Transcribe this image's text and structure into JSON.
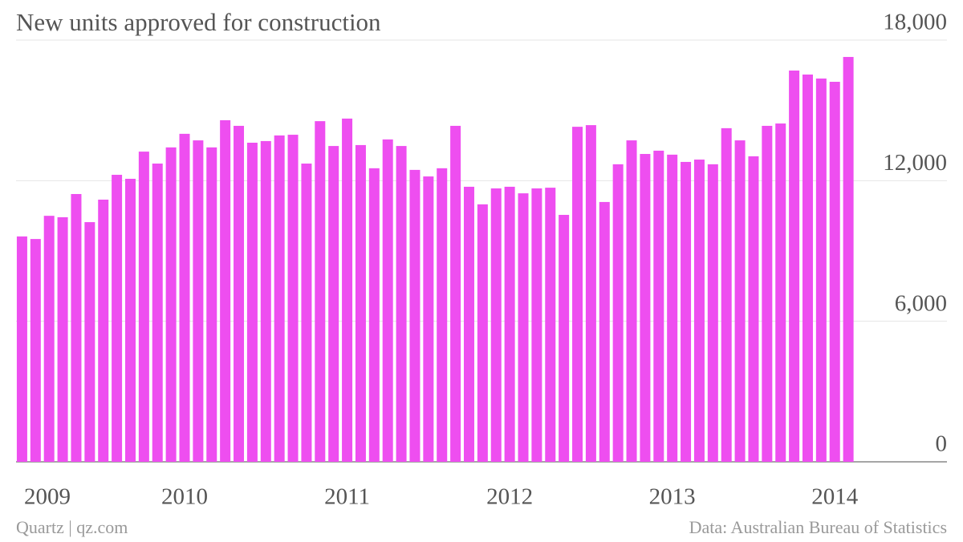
{
  "chart_data": {
    "type": "bar",
    "title": "New units approved for construction",
    "source": "Data: Australian Bureau of Statistics",
    "credit": "Quartz | qz.com",
    "color": "#ee4ef0",
    "categories": [
      "2009",
      null,
      null,
      null,
      null,
      null,
      null,
      null,
      null,
      null,
      null,
      null,
      "2010",
      null,
      null,
      null,
      null,
      null,
      null,
      null,
      null,
      null,
      null,
      null,
      "2011",
      null,
      null,
      null,
      null,
      null,
      null,
      null,
      null,
      null,
      null,
      null,
      "2012",
      null,
      null,
      null,
      null,
      null,
      null,
      null,
      null,
      null,
      null,
      null,
      "2013",
      null,
      null,
      null,
      null,
      null,
      null,
      null,
      null,
      null,
      null,
      null,
      "2014",
      null
    ],
    "values": [
      9620,
      9510,
      10500,
      10440,
      11430,
      10230,
      11190,
      12250,
      12080,
      13240,
      12730,
      13420,
      14000,
      13720,
      13420,
      14580,
      14340,
      13620,
      13690,
      13930,
      13960,
      12730,
      14540,
      13480,
      14650,
      13520,
      12530,
      13760,
      13480,
      12460,
      12180,
      12530,
      14340,
      11740,
      10990,
      11670,
      11740,
      11460,
      11670,
      11700,
      10540,
      14300,
      14370,
      11090,
      12700,
      13720,
      13140,
      13280,
      13110,
      12800,
      12900,
      12700,
      14240,
      13720,
      13040,
      14340,
      14440,
      16700,
      16530,
      16360,
      16220,
      17280
    ],
    "ylim": [
      0,
      18000
    ],
    "yticks": [
      0,
      {
        "value": 6000,
        "label": "6,000"
      },
      {
        "value": 12000,
        "label": "12,000"
      },
      {
        "value": 18000,
        "label": "18,000"
      }
    ],
    "grid": true
  }
}
